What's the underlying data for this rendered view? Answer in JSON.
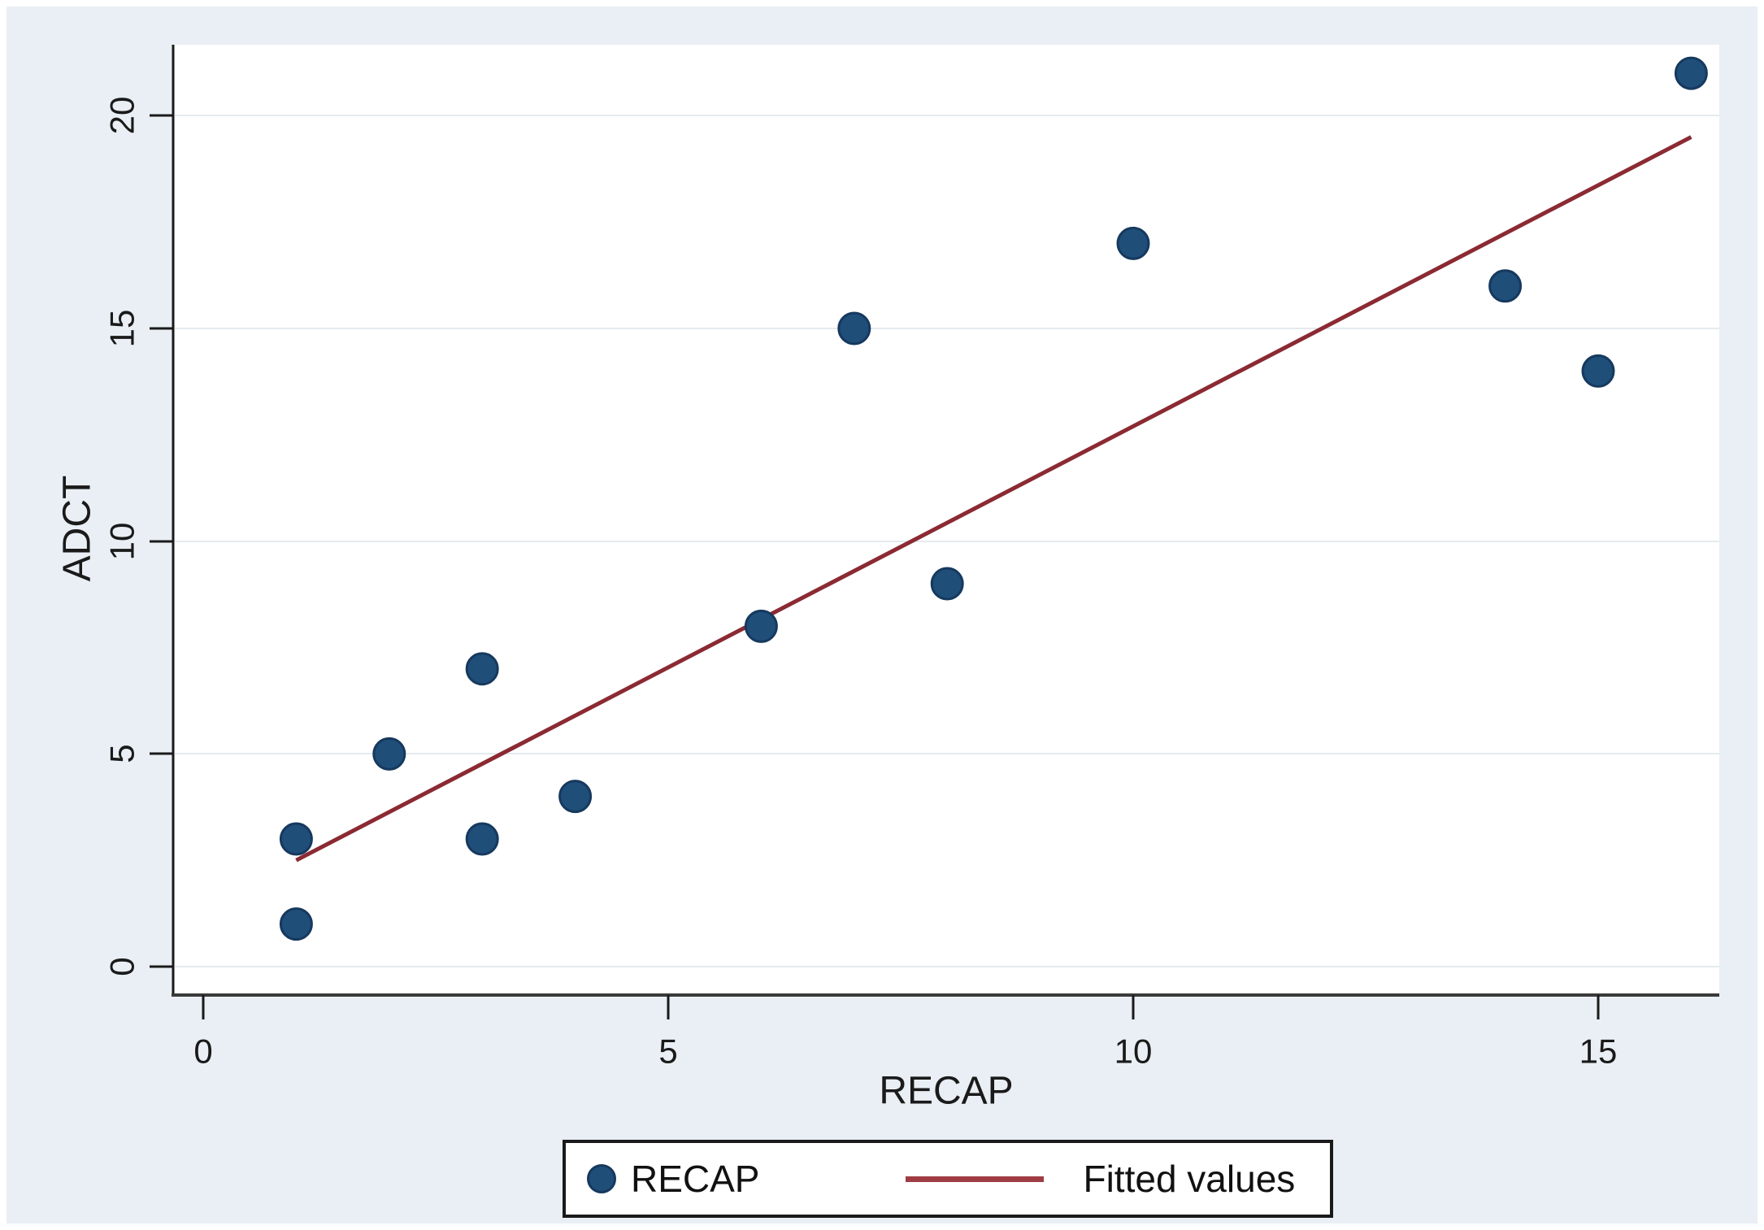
{
  "figure": {
    "background_color": "#e9eff4",
    "plot_background_color": "#ffffff",
    "accent_point_color": "#1f4e79",
    "fitted_line_color": "#8b2a33"
  },
  "chart_data": {
    "type": "scatter",
    "title": "",
    "xlabel": "RECAP",
    "ylabel": "ADCT",
    "xlim": [
      -0.3,
      16.3
    ],
    "ylim": [
      -0.65,
      21.7
    ],
    "grid": "horizontal-only",
    "x_ticks": [
      0,
      5,
      10,
      15
    ],
    "y_ticks": [
      0,
      5,
      10,
      15,
      20
    ],
    "x_tick_labels": [
      "0",
      "5",
      "10",
      "15"
    ],
    "y_tick_labels": [
      "0",
      "5",
      "10",
      "15",
      "20"
    ],
    "series": [
      {
        "name": "RECAP",
        "type": "scatter",
        "color": "#1f4e79",
        "points": [
          [
            1,
            1
          ],
          [
            1,
            3
          ],
          [
            2,
            5
          ],
          [
            3,
            3
          ],
          [
            3,
            7
          ],
          [
            4,
            4
          ],
          [
            6,
            8
          ],
          [
            7,
            15
          ],
          [
            8,
            9
          ],
          [
            10,
            17
          ],
          [
            14,
            16
          ],
          [
            15,
            14
          ],
          [
            16,
            21
          ]
        ]
      },
      {
        "name": "Fitted values",
        "type": "line",
        "color": "#8b2a33",
        "points": [
          [
            1,
            2.5
          ],
          [
            16,
            19.5
          ]
        ]
      }
    ],
    "legend": {
      "position": "bottom-center",
      "entries": [
        "RECAP",
        "Fitted values"
      ]
    }
  }
}
